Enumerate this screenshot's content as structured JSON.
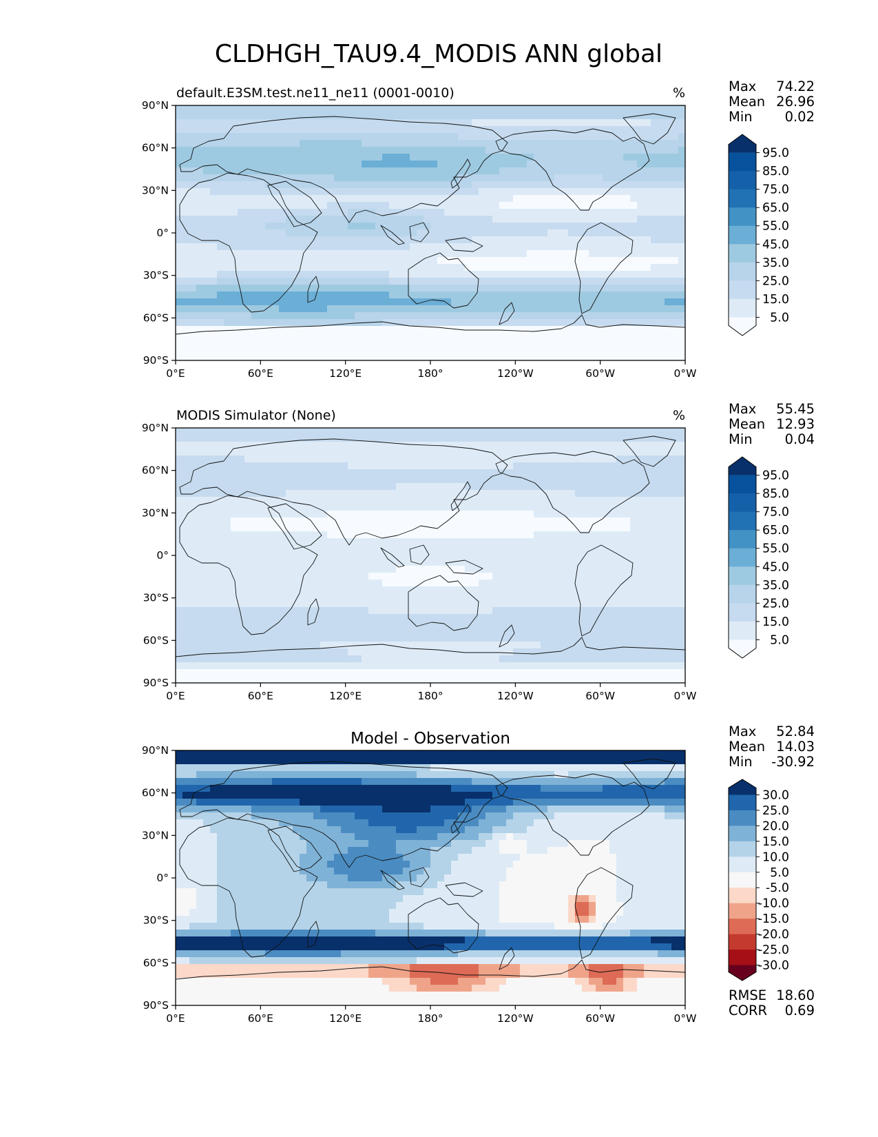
{
  "figure_title": "CLDHGH_TAU9.4_MODIS ANN global",
  "lon_ticks": [
    "0°E",
    "60°E",
    "120°E",
    "180°",
    "120°W",
    "60°W",
    "0°W"
  ],
  "lat_ticks": [
    "90°N",
    "60°N",
    "30°N",
    "0°",
    "30°S",
    "60°S",
    "90°S"
  ],
  "colors": {
    "blues": [
      "#f7fbff",
      "#deebf7",
      "#c6dbef",
      "#b7d4ea",
      "#9ecae1",
      "#6baed6",
      "#4292c6",
      "#2171b5",
      "#1561a9",
      "#08519c",
      "#08306b"
    ],
    "diverging": [
      "#67001f",
      "#a50f15",
      "#c53a2f",
      "#dd6b55",
      "#efa48a",
      "#fbd8c8",
      "#f7f7f7",
      "#deebf7",
      "#b4d3e8",
      "#7fb2d7",
      "#4a8cc2",
      "#2166ac",
      "#08306b"
    ]
  },
  "panels": [
    {
      "id": "test",
      "left_title": "default.E3SM.test.ne11_ne11 (0001-0010)",
      "center_title": "",
      "units": "%",
      "stats": [
        {
          "label": "Max",
          "value": "74.22"
        },
        {
          "label": "Mean",
          "value": "26.96"
        },
        {
          "label": "Min",
          "value": "0.02"
        }
      ],
      "colorbar_labels": [
        "95.0",
        "85.0",
        "75.0",
        "65.0",
        "55.0",
        "45.0",
        "35.0",
        "25.0",
        "15.0",
        "5.0"
      ],
      "field": "model"
    },
    {
      "id": "ref",
      "left_title": "MODIS Simulator (None)",
      "center_title": "",
      "units": "%",
      "stats": [
        {
          "label": "Max",
          "value": "55.45"
        },
        {
          "label": "Mean",
          "value": "12.93"
        },
        {
          "label": "Min",
          "value": "0.04"
        }
      ],
      "colorbar_labels": [
        "95.0",
        "85.0",
        "75.0",
        "65.0",
        "55.0",
        "45.0",
        "35.0",
        "25.0",
        "15.0",
        "5.0"
      ],
      "field": "obs"
    },
    {
      "id": "diff",
      "left_title": "",
      "center_title": "Model - Observation",
      "units": "",
      "stats": [
        {
          "label": "Max",
          "value": "52.84"
        },
        {
          "label": "Mean",
          "value": "14.03"
        },
        {
          "label": "Min",
          "value": "-30.92"
        }
      ],
      "colorbar_labels": [
        "30.0",
        "25.0",
        "20.0",
        "15.0",
        "10.0",
        "5.0",
        "-5.0",
        "-10.0",
        "-15.0",
        "-20.0",
        "-25.0",
        "-30.0"
      ],
      "bottom_stats": [
        {
          "label": "RMSE",
          "value": "18.60"
        },
        {
          "label": "CORR",
          "value": "0.69"
        }
      ],
      "field": "diff"
    }
  ]
}
